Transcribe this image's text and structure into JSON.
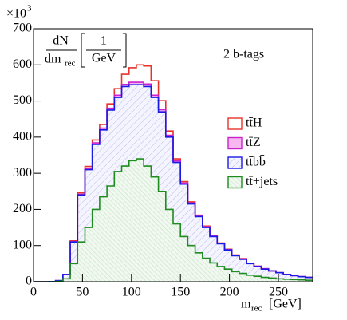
{
  "chart_data": {
    "type": "stacked_histogram",
    "annotation": "2 b-tags",
    "y_multiplier": {
      "base": "×10",
      "exponent": "3"
    },
    "y_label": {
      "numerator": "dN",
      "denominator": "dm",
      "denominator_sub": "rec",
      "unit_numerator": "1",
      "unit_denominator": "GeV"
    },
    "x_label": {
      "main": "m",
      "sub": "rec",
      "unit": "[GeV]"
    },
    "bins": [
      0,
      7.5,
      15,
      22.5,
      30,
      37.5,
      45,
      52.5,
      60,
      67.5,
      75,
      82.5,
      90,
      97.5,
      105,
      112.5,
      120,
      127.5,
      135,
      142.5,
      150,
      157.5,
      165,
      172.5,
      180,
      187.5,
      195,
      202.5,
      210,
      217.5,
      225,
      232.5,
      240,
      247.5,
      255,
      262.5,
      270,
      277.5,
      285
    ],
    "series": [
      {
        "name": "tt̄H",
        "color": "#e8322b",
        "fill": "none",
        "values": [
          0,
          0,
          0,
          0,
          0,
          2,
          4,
          6,
          8,
          10,
          12,
          18,
          28,
          40,
          48,
          50,
          40,
          25,
          12,
          6,
          4,
          3,
          2,
          2,
          1,
          1,
          1,
          1,
          1,
          0,
          0,
          0,
          0,
          0,
          0,
          0,
          0,
          0
        ]
      },
      {
        "name": "tt̄Z",
        "color": "#cc22cc",
        "fill": "solid",
        "values": [
          0,
          0,
          0,
          0,
          0,
          1,
          2,
          3,
          4,
          5,
          5,
          6,
          6,
          7,
          7,
          7,
          6,
          6,
          5,
          4,
          3,
          3,
          2,
          2,
          2,
          1,
          1,
          1,
          1,
          1,
          1,
          1,
          0,
          0,
          0,
          0,
          0,
          0
        ]
      },
      {
        "name": "tt̄bb̄",
        "color": "#1a1ae6",
        "fill": "hatch",
        "values": [
          0,
          0,
          0.5,
          2,
          12,
          60,
          130,
          160,
          180,
          185,
          210,
          205,
          220,
          210,
          205,
          220,
          220,
          220,
          200,
          170,
          145,
          115,
          100,
          85,
          73,
          63,
          53,
          44,
          39,
          32,
          27,
          23,
          20,
          17,
          13,
          11,
          9,
          8
        ]
      },
      {
        "name": "tt̄+jets",
        "color": "#1e8c1e",
        "fill": "hatch",
        "values": [
          0,
          0,
          0,
          1,
          8,
          50,
          110,
          150,
          200,
          235,
          265,
          305,
          320,
          335,
          340,
          320,
          290,
          250,
          200,
          160,
          125,
          100,
          80,
          65,
          52,
          42,
          35,
          28,
          23,
          18,
          15,
          12,
          10,
          8,
          7,
          6,
          5,
          4
        ]
      }
    ],
    "xlim": [
      0,
      285
    ],
    "ylim": [
      0,
      700
    ],
    "xticks": [
      0,
      50,
      100,
      150,
      200,
      250
    ],
    "yticks": [
      0,
      100,
      200,
      300,
      400,
      500,
      600,
      700
    ]
  }
}
